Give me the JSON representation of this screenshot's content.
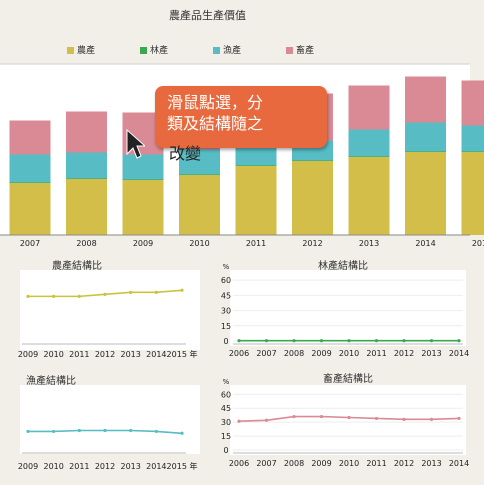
{
  "title": "農產品生產價值",
  "legend": [
    {
      "label": "農產",
      "color": "#d3be4a"
    },
    {
      "label": "林產",
      "color": "#3ba74e"
    },
    {
      "label": "漁產",
      "color": "#57bcc4"
    },
    {
      "label": "畜產",
      "color": "#d98a95"
    }
  ],
  "tooltip": {
    "line1": "滑鼠點選，分",
    "line2": "類及結構隨之",
    "line3": "改變"
  },
  "chart_data": [
    {
      "type": "bar",
      "title": "農產品生產價值",
      "categories": [
        "2007",
        "2008",
        "2009",
        "2010",
        "2011",
        "2012",
        "2013",
        "2014",
        "2015"
      ],
      "series": [
        {
          "name": "農產",
          "values": [
            52,
            56,
            55,
            60,
            69,
            74,
            78,
            83,
            83
          ]
        },
        {
          "name": "林產",
          "values": [
            0.5,
            0.5,
            0.5,
            0.5,
            0.5,
            0.5,
            0.5,
            0.5,
            0.5
          ]
        },
        {
          "name": "漁產",
          "values": [
            28,
            26,
            25,
            25,
            20,
            20,
            27,
            29,
            26
          ]
        },
        {
          "name": "畜產",
          "values": [
            34,
            41,
            42,
            42,
            45,
            47,
            44,
            46,
            45
          ]
        }
      ],
      "ylim": [
        0,
        170
      ]
    },
    {
      "type": "line",
      "title": "農產結構比",
      "x": [
        "2009",
        "2010",
        "2011",
        "2012",
        "2013",
        "2014",
        "2015"
      ],
      "x_suffix": "年",
      "series": [
        {
          "name": "農產",
          "values": [
            44,
            44,
            44,
            46,
            48,
            48,
            50
          ]
        }
      ],
      "ylim": [
        0,
        70
      ]
    },
    {
      "type": "line",
      "title": "林產結構比",
      "x": [
        "2006",
        "2007",
        "2008",
        "2009",
        "2010",
        "2011",
        "2012",
        "2013",
        "2014"
      ],
      "yticks": [
        0,
        15,
        30,
        45,
        60
      ],
      "yunit": "%",
      "series": [
        {
          "name": "林產",
          "values": [
            0.3,
            0.3,
            0.3,
            0.3,
            0.3,
            0.3,
            0.3,
            0.3,
            0.3
          ]
        }
      ],
      "ylim": [
        0,
        70
      ]
    },
    {
      "type": "line",
      "title": "漁產結構比",
      "x": [
        "2009",
        "2010",
        "2011",
        "2012",
        "2013",
        "2014",
        "2015"
      ],
      "x_suffix": "年",
      "series": [
        {
          "name": "漁產",
          "values": [
            20,
            20,
            21,
            21,
            21,
            20,
            18
          ]
        }
      ],
      "ylim": [
        0,
        70
      ]
    },
    {
      "type": "line",
      "title": "畜產結構比",
      "x": [
        "2006",
        "2007",
        "2008",
        "2009",
        "2010",
        "2011",
        "2012",
        "2013",
        "2014"
      ],
      "yticks": [
        0,
        15,
        30,
        45,
        60
      ],
      "yunit": "%",
      "series": [
        {
          "name": "畜產",
          "values": [
            31,
            32,
            36,
            36,
            35,
            34,
            33,
            33,
            34
          ]
        }
      ],
      "ylim": [
        0,
        70
      ]
    }
  ]
}
